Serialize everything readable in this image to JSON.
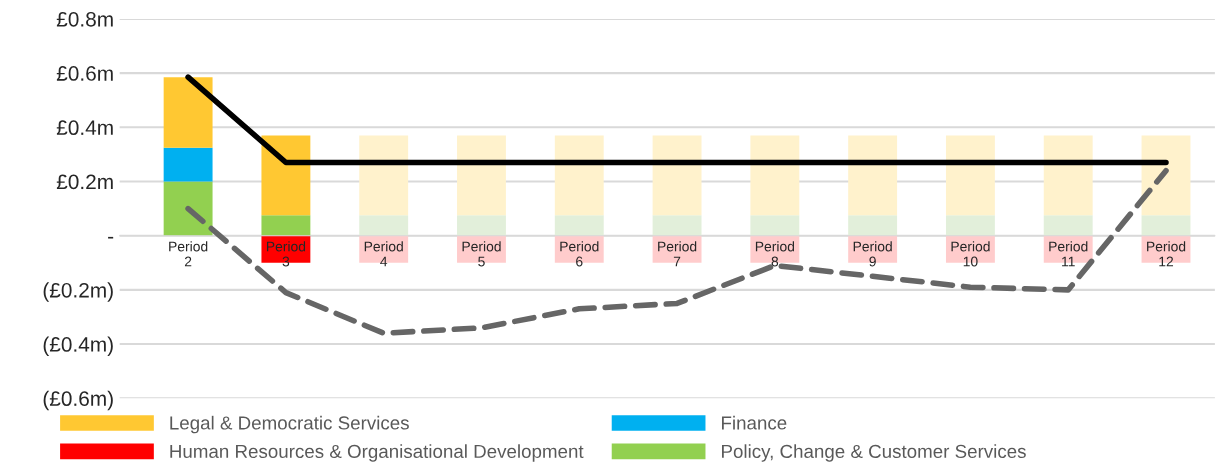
{
  "chart_data": {
    "type": "bar",
    "stacked": true,
    "categories": [
      "Period\n2",
      "Period\n3",
      "Period\n4",
      "Period\n5",
      "Period\n6",
      "Period\n7",
      "Period\n8",
      "Period\n9",
      "Period\n10",
      "Period\n11",
      "Period\n12"
    ],
    "series": [
      {
        "name": "Policy, Change & Customer Services",
        "color": "#92d050",
        "colors": [
          "#92d050",
          "#92d050",
          "#e2efda",
          "#e2efda",
          "#e2efda",
          "#e2efda",
          "#e2efda",
          "#e2efda",
          "#e2efda",
          "#e2efda",
          "#e2efda"
        ],
        "values": [
          0.2,
          0.075,
          0.075,
          0.075,
          0.075,
          0.075,
          0.075,
          0.075,
          0.075,
          0.075,
          0.075
        ]
      },
      {
        "name": "Finance",
        "color": "#00b0f0",
        "values": [
          0.125,
          null,
          null,
          null,
          null,
          null,
          null,
          null,
          null,
          null,
          null
        ]
      },
      {
        "name": "Legal & Democratic Services",
        "color": "#ffc832",
        "colors": [
          "#ffc832",
          "#ffc832",
          "#fff2cc",
          "#fff2cc",
          "#fff2cc",
          "#fff2cc",
          "#fff2cc",
          "#fff2cc",
          "#fff2cc",
          "#fff2cc",
          "#fff2cc"
        ],
        "values": [
          0.26,
          0.295,
          0.295,
          0.295,
          0.295,
          0.295,
          0.295,
          0.295,
          0.295,
          0.295,
          0.295
        ]
      },
      {
        "name": "Human Resources & Organisational Development",
        "color": "#ff0000",
        "colors": [
          null,
          "#ff0000",
          "#ffcccc",
          "#ffcccc",
          "#ffcccc",
          "#ffcccc",
          "#ffcccc",
          "#ffcccc",
          "#ffcccc",
          "#ffcccc",
          "#ffcccc"
        ],
        "values": [
          null,
          -0.1,
          -0.1,
          -0.1,
          -0.1,
          -0.1,
          -0.1,
          -0.1,
          -0.1,
          -0.1,
          -0.1
        ]
      },
      {
        "type": "line",
        "color": "#000000",
        "line_style": "solid",
        "values": [
          0.585,
          0.27,
          0.27,
          0.27,
          0.27,
          0.27,
          0.27,
          0.27,
          0.27,
          0.27,
          0.27
        ]
      },
      {
        "type": "line",
        "color": "#666666",
        "line_style": "dashed",
        "values": [
          0.1,
          -0.21,
          -0.36,
          -0.34,
          -0.27,
          -0.25,
          -0.11,
          -0.15,
          -0.19,
          -0.2,
          0.24
        ]
      }
    ],
    "ylim": [
      -0.6,
      0.8
    ],
    "yticks": [
      {
        "value": -0.6,
        "label": "(£0.6m)"
      },
      {
        "value": -0.4,
        "label": "(£0.4m)"
      },
      {
        "value": -0.2,
        "label": "(£0.2m)"
      },
      {
        "value": 0,
        "label": "-"
      },
      {
        "value": 0.2,
        "label": "£0.2m"
      },
      {
        "value": 0.4,
        "label": "£0.4m"
      },
      {
        "value": 0.6,
        "label": "£0.6m"
      },
      {
        "value": 0.8,
        "label": "£0.8m"
      }
    ],
    "grid": "y",
    "legend": "bottom",
    "marker": "none"
  }
}
